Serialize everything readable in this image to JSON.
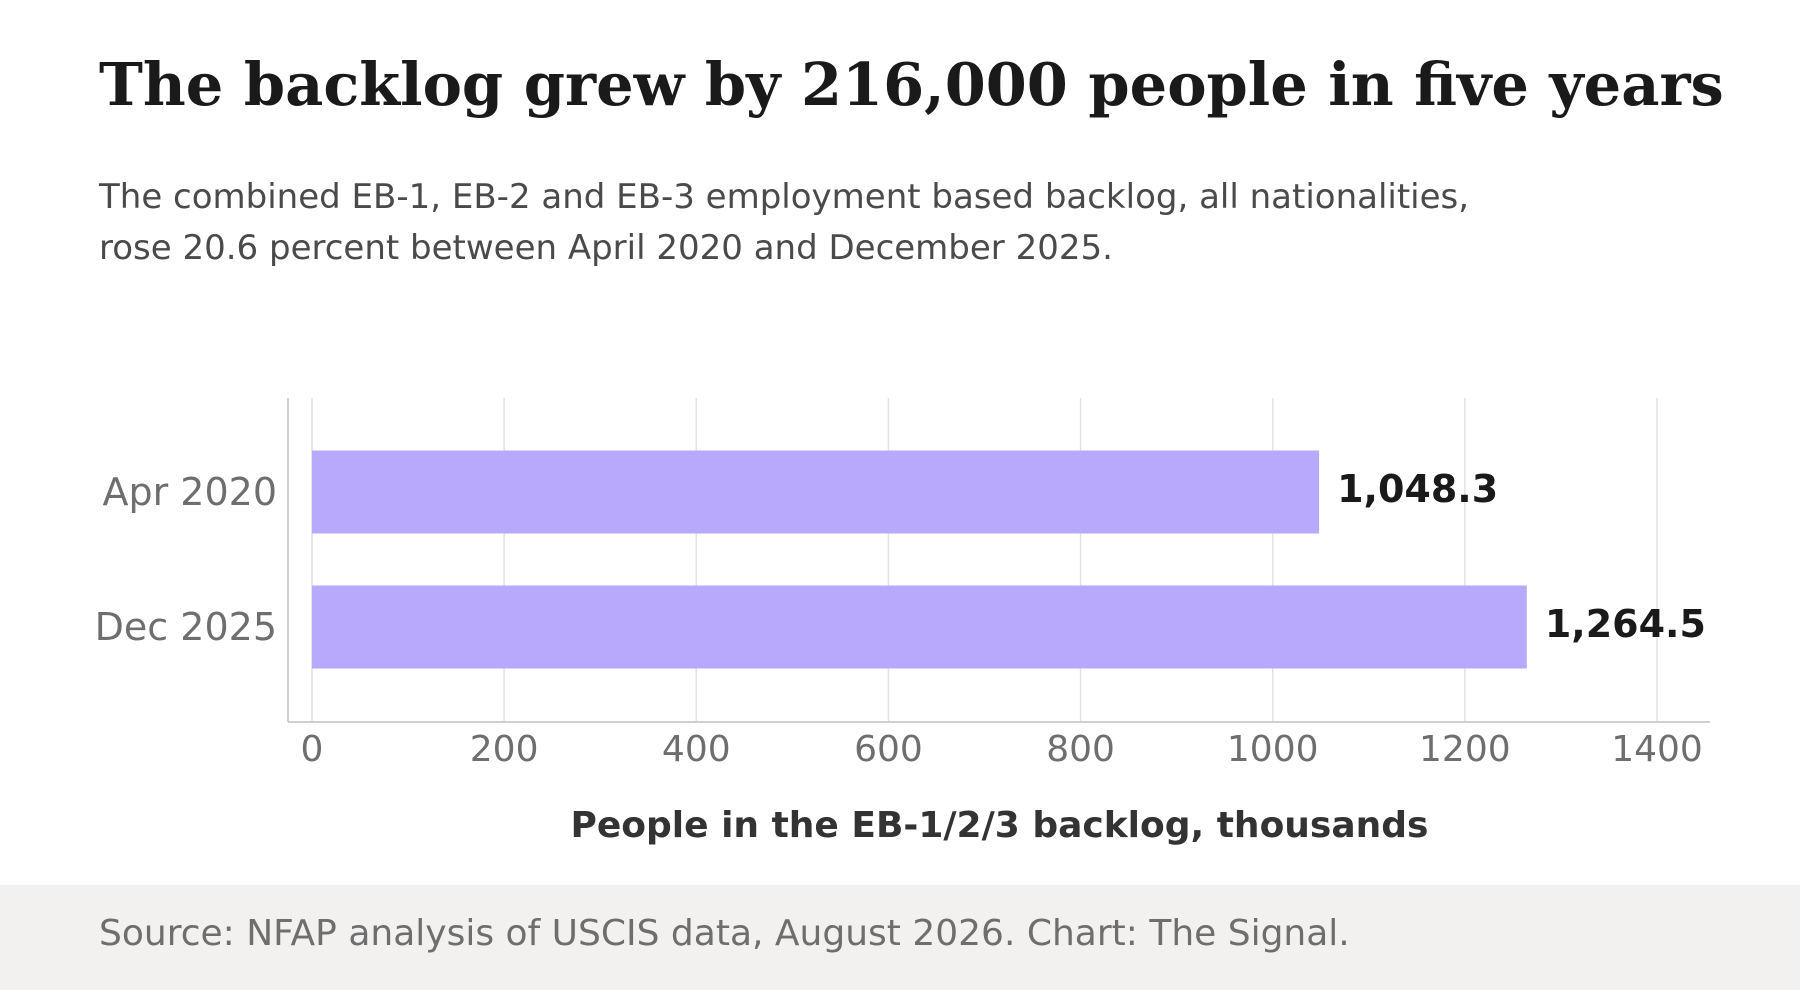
{
  "header": {
    "title": "The backlog grew by 216,000 people in five years",
    "subtitle": "The combined EB-1, EB-2 and EB-3 employment based backlog, all nationalities, rose 20.6 percent between April 2020 and December 2025."
  },
  "footer": {
    "source": "Source: NFAP analysis of USCIS data, August 2026. Chart: The Signal."
  },
  "colors": {
    "bar": "#b8a9fd",
    "value_label": "#1a1a1a",
    "tick_label": "#6e6e6e",
    "axis_title": "#333333",
    "grid": "#e3e3e3",
    "axis_line": "#d0d0d0",
    "footer_bg": "#f2f1f0"
  },
  "chart_data": {
    "type": "bar",
    "orientation": "horizontal",
    "categories": [
      "Apr 2020",
      "Dec 2025"
    ],
    "values": [
      1048.3,
      1264.5
    ],
    "value_labels": [
      "1,048.3",
      "1,264.5"
    ],
    "xlabel": "People in the EB-1/2/3 backlog, thousands",
    "ylabel": "",
    "xlim": [
      0,
      1400
    ],
    "xticks": [
      0,
      200,
      400,
      600,
      800,
      1000,
      1200,
      1400
    ],
    "grid": "vertical",
    "legend": "none"
  }
}
